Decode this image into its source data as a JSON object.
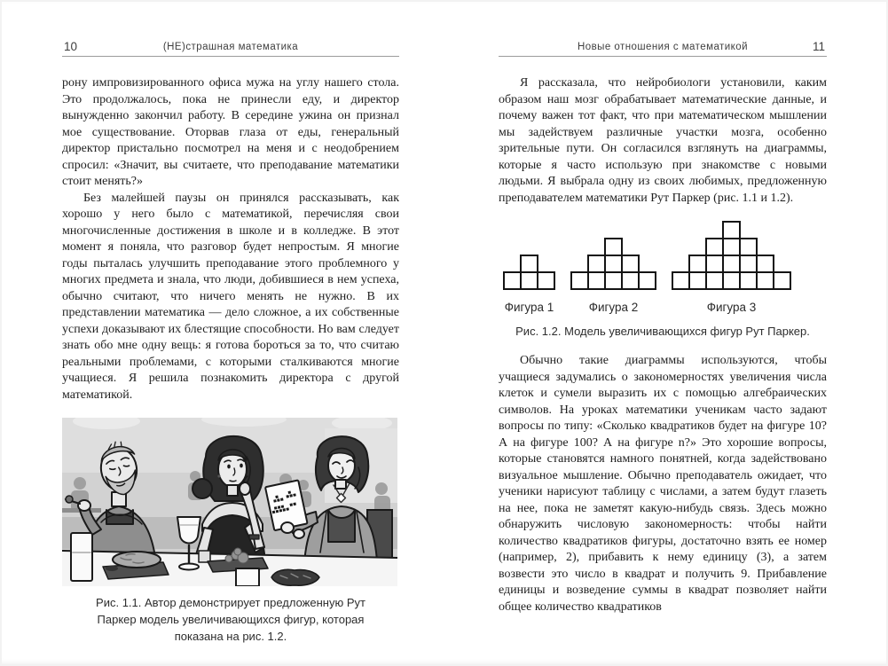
{
  "colors": {
    "page_background": "#ffffff",
    "body_text": "#1e1e1e",
    "header_text": "#3d3d3d",
    "header_rule": "#9c9c9c",
    "diagram_line": "#141414"
  },
  "left_page": {
    "page_number": "10",
    "running_head": "(НЕ)страшная математика",
    "paragraphs": [
      "рону импровизированного офиса мужа на углу нашего стола. Это продолжалось, пока не принесли еду, и директор вынужденно закончил работу. В середине ужина он признал мое существование. Оторвав глаза от еды, генеральный директор пристально посмотрел на меня и с неодобрением спросил: «Значит, вы считаете, что преподавание математики стоит менять?»",
      "Без малейшей паузы он принялся рассказывать, как хорошо у него было с математикой, перечисляя свои многочисленные достижения в школе и в колледже. В этот момент я поняла, что разговор будет непростым. Я многие годы пыталась улучшить преподавание этого проблемного у многих предмета и знала, что люди, добившиеся в нем успеха, обычно считают, что ничего менять не нужно. В их представлении математика — дело сложное, а их собственные успехи доказывают их блестящие способности. Но вам следует знать обо мне одну вещь: я готова бороться за то, что считаю реальными проблемами, с которыми сталкиваются многие учащиеся. Я решила познакомить директора с другой математикой."
    ],
    "figure_caption": "Рис. 1.1. Автор демонстрирует предложенную Рут Паркер модель увеличивающихся фигур, которая показана на рис. 1.2."
  },
  "right_page": {
    "page_number": "11",
    "running_head": "Новые отношения с математикой",
    "paragraph_before_figure": "Я рассказала, что нейробиологи установили, каким образом наш мозг обрабатывает математические данные, и почему важен тот факт, что при математическом мышлении мы задействуем различные участки мозга, особенно зрительные пути. Он согласился взглянуть на диаграммы, которые я часто использую при знакомстве с новыми людьми. Я выбрала одну из своих любимых, предложенную преподавателем математики Рут Паркер (рис. 1.1 и 1.2).",
    "figure": {
      "figures": [
        {
          "label": "Фигура 1",
          "rows_top_to_bottom": [
            1,
            3
          ],
          "total_squares": 4
        },
        {
          "label": "Фигура 2",
          "rows_top_to_bottom": [
            1,
            3,
            5
          ],
          "total_squares": 9
        },
        {
          "label": "Фигура 3",
          "rows_top_to_bottom": [
            1,
            3,
            5,
            7
          ],
          "total_squares": 16
        }
      ]
    },
    "figure_caption": "Рис. 1.2. Модель увеличивающихся фигур Рут Паркер.",
    "paragraph_after_figure": "Обычно такие диаграммы используются, чтобы учащиеся задумались о закономерностях увеличения числа клеток и сумели выразить их с помощью алгебраических символов. На уроках математики ученикам часто задают вопросы по типу: «Сколько квадратиков будет на фигуре 10? А на фигуре 100? А на фигуре n?» Это хорошие вопросы, которые становятся намного понятней, когда задействовано визуальное мышление. Обычно преподаватель ожидает, что ученики нарисуют таблицу с числами, а затем будут глазеть на нее, пока не заметят какую-нибудь связь. Здесь можно обнаружить числовую закономерность: чтобы найти количество квадратиков фигуры, достаточно взять ее номер (например, 2), прибавить к нему единицу (3), а затем возвести это число в квадрат и получить 9. Прибавление единицы и возведение суммы в квадрат позволяет найти общее количество квадратиков"
  }
}
